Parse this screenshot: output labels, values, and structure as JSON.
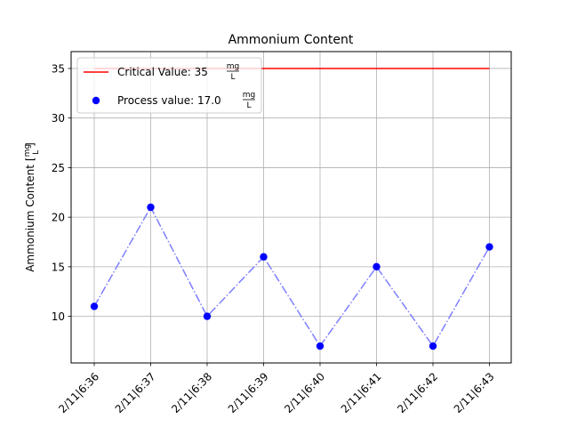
{
  "chart_data": {
    "type": "line",
    "title": "Ammonium Content",
    "xlabel": "",
    "ylabel": "Ammonium Content",
    "ylabel_unit_num": "mg",
    "ylabel_unit_den": "L",
    "categories": [
      "2/11|6:36",
      "2/11|6:37",
      "2/11|6:38",
      "2/11|6:39",
      "2/11|6:40",
      "2/11|6:41",
      "2/11|6:42",
      "2/11|6:43"
    ],
    "ylim": [
      5.3,
      36.7
    ],
    "yticks": [
      10,
      15,
      20,
      25,
      30,
      35
    ],
    "grid": true,
    "legend_position": "top-left",
    "series": [
      {
        "name": "Process value",
        "legend_label": "Process value: 17.0",
        "unit_num": "mg",
        "unit_den": "L",
        "values": [
          11,
          21,
          10,
          16,
          7,
          15,
          7,
          17
        ],
        "marker_color": "#0000ff",
        "line_color": "#7f7fff",
        "line_style": "dash-dot"
      },
      {
        "name": "Critical Value",
        "legend_label": "Critical Value: 35",
        "unit_num": "mg",
        "unit_den": "L",
        "values": [
          35,
          35,
          35,
          35,
          35,
          35,
          35,
          35
        ],
        "line_color": "#ff0000",
        "line_style": "solid"
      }
    ]
  }
}
